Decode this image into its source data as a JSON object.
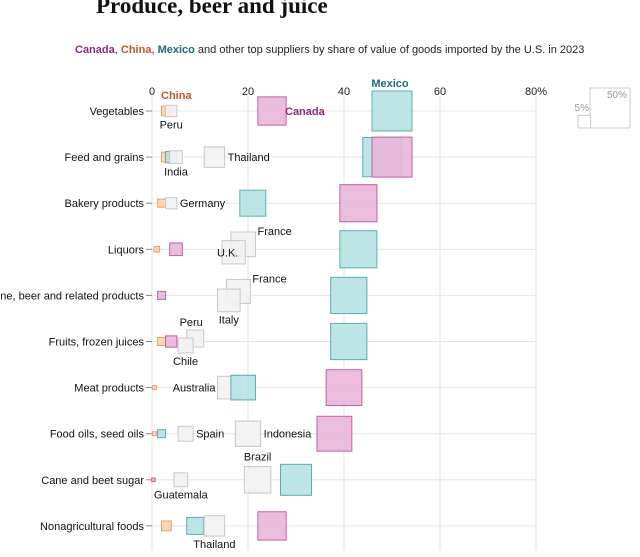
{
  "title": "Produce, beer and juice",
  "subtitle": {
    "canada": "Canada",
    "sep1": ", ",
    "china": "China",
    "sep2": ", ",
    "mexico": "Mexico",
    "rest": " and other top suppliers by share of value of goods imported by the U.S. in 2023"
  },
  "colors": {
    "canada_fill": "#e8b6d8",
    "canada_stroke": "#c45ea8",
    "canada_text": "#8a2b78",
    "china_fill": "#fbd3b0",
    "china_stroke": "#eda066",
    "china_text": "#c0562d",
    "mexico_fill": "#b6e2e3",
    "mexico_stroke": "#5aaeb3",
    "mexico_text": "#1e6b73",
    "other_fill": "#f2f2f2",
    "other_stroke": "#c8c8c8",
    "grid": "#e4e4e4"
  },
  "chart_data": {
    "type": "scatter",
    "x_ticks": [
      "0",
      "20",
      "40",
      "60",
      "80%"
    ],
    "x_tick_values": [
      0,
      20,
      40,
      60,
      80
    ],
    "xlim": [
      0,
      80
    ],
    "size_legend": {
      "labels": [
        "5%",
        "50%"
      ],
      "values": [
        5,
        50
      ]
    },
    "series_labels": {
      "china": "China",
      "canada": "Canada",
      "mexico": "Mexico"
    },
    "categories": [
      "Vegetables",
      "Feed and grains",
      "Bakery products",
      "Liquors",
      "Wine, beer and related products",
      "Fruits, frozen juices",
      "Meat products",
      "Food oils, seed oils",
      "Cane and beet sugar",
      "Nonagricultural foods"
    ],
    "rows": [
      {
        "points": [
          {
            "s": "china",
            "v": 3
          },
          {
            "s": "other",
            "v": 4,
            "label": "Peru"
          },
          {
            "s": "canada",
            "v": 25
          },
          {
            "s": "mexico",
            "v": 50
          }
        ]
      },
      {
        "points": [
          {
            "s": "china",
            "v": 3
          },
          {
            "s": "mexico",
            "v": 4
          },
          {
            "s": "other",
            "v": 5,
            "label": "India"
          },
          {
            "s": "other",
            "v": 13,
            "label": "Thailand"
          },
          {
            "s": "mexico",
            "v": 48
          },
          {
            "s": "canada",
            "v": 50
          }
        ]
      },
      {
        "points": [
          {
            "s": "china",
            "v": 2
          },
          {
            "s": "other",
            "v": 4,
            "label": "Germany"
          },
          {
            "s": "mexico",
            "v": 21
          },
          {
            "s": "canada",
            "v": 43
          }
        ]
      },
      {
        "points": [
          {
            "s": "china",
            "v": 1
          },
          {
            "s": "canada",
            "v": 5
          },
          {
            "s": "other",
            "v": 19,
            "label": "France"
          },
          {
            "s": "other",
            "v": 17,
            "label": "U.K."
          },
          {
            "s": "mexico",
            "v": 43
          }
        ]
      },
      {
        "points": [
          {
            "s": "canada",
            "v": 2
          },
          {
            "s": "other",
            "v": 18,
            "label": "France"
          },
          {
            "s": "other",
            "v": 16,
            "label": "Italy"
          },
          {
            "s": "mexico",
            "v": 41
          }
        ]
      },
      {
        "points": [
          {
            "s": "china",
            "v": 2
          },
          {
            "s": "canada",
            "v": 4
          },
          {
            "s": "other",
            "v": 9,
            "label": "Peru"
          },
          {
            "s": "other",
            "v": 7,
            "label": "Chile"
          },
          {
            "s": "mexico",
            "v": 41
          }
        ]
      },
      {
        "points": [
          {
            "s": "china",
            "v": 0.5
          },
          {
            "s": "other",
            "v": 16,
            "label": "Australia"
          },
          {
            "s": "mexico",
            "v": 19
          },
          {
            "s": "canada",
            "v": 40
          }
        ]
      },
      {
        "points": [
          {
            "s": "china",
            "v": 0.5
          },
          {
            "s": "mexico",
            "v": 2
          },
          {
            "s": "other",
            "v": 7,
            "label": "Spain"
          },
          {
            "s": "other",
            "v": 20,
            "label": "Indonesia"
          },
          {
            "s": "canada",
            "v": 38
          }
        ]
      },
      {
        "points": [
          {
            "s": "canada",
            "v": 0.3
          },
          {
            "s": "other",
            "v": 6,
            "label": "Guatemala"
          },
          {
            "s": "other",
            "v": 22,
            "label": "Brazil"
          },
          {
            "s": "mexico",
            "v": 30
          }
        ]
      },
      {
        "points": [
          {
            "s": "china",
            "v": 3
          },
          {
            "s": "mexico",
            "v": 9
          },
          {
            "s": "other",
            "v": 13,
            "label": "Thailand"
          },
          {
            "s": "canada",
            "v": 25
          }
        ]
      }
    ]
  }
}
